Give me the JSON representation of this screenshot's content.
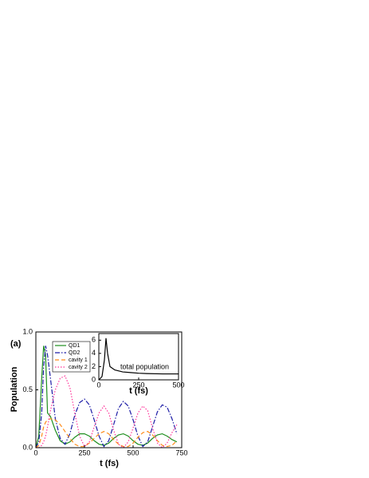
{
  "chart_data": [
    {
      "type": "line",
      "annotation": "(a)",
      "xlabel": "t (fs)",
      "ylabel": "Population",
      "x": [
        0,
        15,
        30,
        40,
        50,
        60,
        75,
        100,
        125,
        150,
        175,
        200,
        225,
        250,
        275,
        300,
        325,
        350,
        375,
        400,
        425,
        450,
        475,
        500,
        525,
        550,
        575,
        600,
        625,
        650,
        675,
        700,
        725
      ],
      "series": [
        {
          "name": "QD1",
          "color": "#1f8f1f",
          "linestyle": "solid",
          "values": [
            0,
            0.1,
            0.6,
            0.88,
            0.8,
            0.3,
            0.27,
            0.15,
            0.06,
            0.03,
            0.05,
            0.09,
            0.12,
            0.12,
            0.1,
            0.06,
            0.03,
            0.02,
            0.04,
            0.08,
            0.11,
            0.12,
            0.1,
            0.06,
            0.03,
            0.02,
            0.04,
            0.08,
            0.11,
            0.12,
            0.1,
            0.07,
            0.05
          ]
        },
        {
          "name": "QD2",
          "color": "#1c1ca6",
          "linestyle": "dashdot",
          "values": [
            0,
            0.05,
            0.3,
            0.7,
            0.88,
            0.8,
            0.6,
            0.25,
            0.08,
            0.03,
            0.12,
            0.28,
            0.39,
            0.42,
            0.37,
            0.24,
            0.1,
            0.01,
            0.06,
            0.2,
            0.34,
            0.4,
            0.36,
            0.24,
            0.1,
            0.01,
            0.05,
            0.18,
            0.31,
            0.37,
            0.35,
            0.25,
            0.12
          ]
        },
        {
          "name": "cavity 1",
          "color": "#ff8c1a",
          "linestyle": "dashed",
          "values": [
            0,
            0.02,
            0.1,
            0.18,
            0.22,
            0.24,
            0.25,
            0.24,
            0.2,
            0.14,
            0.08,
            0.03,
            0.01,
            0.01,
            0.04,
            0.08,
            0.12,
            0.14,
            0.12,
            0.07,
            0.03,
            0.01,
            0.01,
            0.04,
            0.09,
            0.13,
            0.14,
            0.11,
            0.06,
            0.02,
            0.01,
            0.02,
            0.06
          ]
        },
        {
          "name": "cavity 2",
          "color": "#ff3399",
          "linestyle": "dotted",
          "values": [
            0,
            0,
            0.02,
            0.05,
            0.1,
            0.18,
            0.32,
            0.5,
            0.6,
            0.62,
            0.52,
            0.3,
            0.1,
            0.01,
            0.05,
            0.18,
            0.3,
            0.36,
            0.3,
            0.15,
            0.03,
            0,
            0.05,
            0.17,
            0.3,
            0.36,
            0.32,
            0.17,
            0.04,
            0,
            0.04,
            0.13,
            0.2
          ]
        }
      ],
      "xlim": [
        0,
        750
      ],
      "ylim": [
        0,
        1.0
      ],
      "xticks": [
        0,
        250,
        500,
        750
      ],
      "yticks": [
        {
          "value": 0,
          "label": "0.0"
        },
        0.5,
        {
          "value": 1.0,
          "label": "1.0"
        }
      ],
      "legend": "upper left"
    },
    {
      "type": "line",
      "annotation": "total population",
      "xlabel": "t (fs)",
      "x": [
        0,
        20,
        35,
        45,
        55,
        70,
        100,
        150,
        200,
        250,
        300,
        400,
        500
      ],
      "series": [
        {
          "color": "#000000",
          "linestyle": "solid",
          "values": [
            0,
            0.5,
            3,
            6.3,
            4,
            2,
            1.5,
            1.2,
            1.1,
            1.0,
            0.95,
            0.9,
            0.9
          ]
        }
      ],
      "xlim": [
        0,
        500
      ],
      "ylim": [
        0,
        7
      ],
      "xticks": [
        0,
        250,
        500
      ],
      "yticks": [
        0,
        2,
        4,
        6
      ]
    }
  ]
}
